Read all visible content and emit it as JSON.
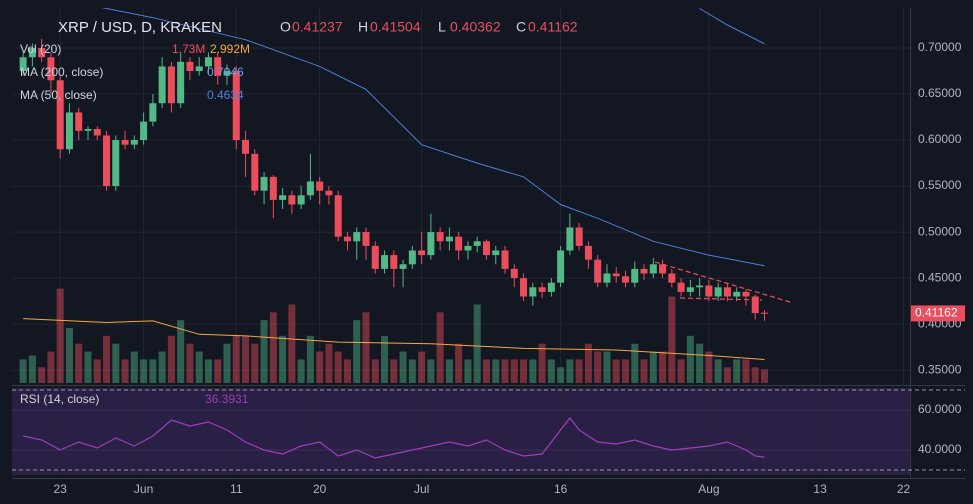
{
  "chart_data": {
    "type": "candlestick",
    "title": "XRP / USD, D, KRAKEN",
    "ohlc_labels": [
      "O",
      "H",
      "L",
      "C"
    ],
    "up_color": "#53b987",
    "down_color": "#eb4d5c",
    "grid": true,
    "xlim": [
      -5.2,
      91.7
    ],
    "xticks": [
      {
        "value": 0,
        "label": "23"
      },
      {
        "value": 9,
        "label": "Jun"
      },
      {
        "value": 19,
        "label": "11"
      },
      {
        "value": 28,
        "label": "20"
      },
      {
        "value": 39,
        "label": "Jul"
      },
      {
        "value": 54,
        "label": "16"
      },
      {
        "value": 70,
        "label": "Aug"
      },
      {
        "value": 82,
        "label": "13"
      },
      {
        "value": 91,
        "label": "22"
      }
    ],
    "ylim": [
      0.336,
      0.7435
    ],
    "yticks": [
      {
        "value": 0.35,
        "label": "0.35000"
      },
      {
        "value": 0.4,
        "label": "0.40000"
      },
      {
        "value": 0.45,
        "label": "0.45000"
      },
      {
        "value": 0.5,
        "label": "0.50000"
      },
      {
        "value": 0.55,
        "label": "0.55000"
      },
      {
        "value": 0.6,
        "label": "0.60000"
      },
      {
        "value": 0.65,
        "label": "0.65000"
      },
      {
        "value": 0.7,
        "label": "0.70000"
      }
    ],
    "x": [
      -4,
      -3,
      -2,
      -1,
      0,
      1,
      2,
      3,
      4,
      5,
      6,
      7,
      8,
      9,
      10,
      11,
      12,
      13,
      14,
      15,
      16,
      17,
      18,
      19,
      20,
      21,
      22,
      23,
      24,
      25,
      26,
      27,
      28,
      29,
      30,
      31,
      32,
      33,
      34,
      35,
      36,
      37,
      38,
      39,
      40,
      41,
      42,
      43,
      44,
      45,
      46,
      47,
      48,
      49,
      50,
      51,
      52,
      53,
      54,
      55,
      56,
      57,
      58,
      59,
      60,
      61,
      62,
      63,
      64,
      65,
      66,
      67,
      68,
      69,
      70,
      71,
      72,
      73,
      74,
      75,
      76
    ],
    "open": [
      0.675,
      0.69,
      0.7,
      0.69,
      0.665,
      0.59,
      0.63,
      0.61,
      0.612,
      0.605,
      0.55,
      0.6,
      0.595,
      0.6,
      0.62,
      0.64,
      0.68,
      0.64,
      0.685,
      0.675,
      0.68,
      0.69,
      0.67,
      0.675,
      0.6,
      0.585,
      0.545,
      0.56,
      0.535,
      0.54,
      0.53,
      0.54,
      0.555,
      0.545,
      0.54,
      0.495,
      0.49,
      0.5,
      0.485,
      0.46,
      0.475,
      0.46,
      0.465,
      0.48,
      0.475,
      0.5,
      0.49,
      0.495,
      0.48,
      0.485,
      0.49,
      0.475,
      0.48,
      0.46,
      0.45,
      0.43,
      0.44,
      0.435,
      0.445,
      0.48,
      0.505,
      0.485,
      0.47,
      0.445,
      0.455,
      0.452,
      0.445,
      0.46,
      0.455,
      0.465,
      0.455,
      0.445,
      0.435,
      0.44,
      0.442,
      0.43,
      0.44,
      0.43,
      0.435,
      0.43,
      0.41237
    ],
    "high": [
      0.695,
      0.705,
      0.71,
      0.695,
      0.67,
      0.64,
      0.635,
      0.615,
      0.615,
      0.61,
      0.605,
      0.61,
      0.605,
      0.63,
      0.65,
      0.69,
      0.685,
      0.695,
      0.69,
      0.69,
      0.695,
      0.695,
      0.682,
      0.68,
      0.61,
      0.59,
      0.565,
      0.562,
      0.548,
      0.545,
      0.55,
      0.585,
      0.56,
      0.55,
      0.545,
      0.5,
      0.505,
      0.505,
      0.49,
      0.48,
      0.48,
      0.47,
      0.485,
      0.5,
      0.52,
      0.505,
      0.505,
      0.5,
      0.49,
      0.495,
      0.492,
      0.485,
      0.485,
      0.465,
      0.455,
      0.445,
      0.445,
      0.45,
      0.485,
      0.52,
      0.51,
      0.49,
      0.475,
      0.465,
      0.462,
      0.458,
      0.468,
      0.465,
      0.472,
      0.47,
      0.46,
      0.45,
      0.448,
      0.45,
      0.448,
      0.445,
      0.445,
      0.44,
      0.438,
      0.432,
      0.41504
    ],
    "low": [
      0.67,
      0.68,
      0.685,
      0.65,
      0.58,
      0.585,
      0.6,
      0.6,
      0.6,
      0.545,
      0.545,
      0.59,
      0.59,
      0.595,
      0.615,
      0.635,
      0.63,
      0.635,
      0.665,
      0.67,
      0.672,
      0.66,
      0.66,
      0.59,
      0.56,
      0.54,
      0.53,
      0.515,
      0.525,
      0.52,
      0.525,
      0.535,
      0.53,
      0.53,
      0.49,
      0.48,
      0.47,
      0.47,
      0.455,
      0.455,
      0.44,
      0.44,
      0.46,
      0.465,
      0.47,
      0.48,
      0.48,
      0.47,
      0.47,
      0.478,
      0.47,
      0.465,
      0.455,
      0.44,
      0.425,
      0.42,
      0.428,
      0.43,
      0.44,
      0.475,
      0.48,
      0.46,
      0.44,
      0.44,
      0.445,
      0.44,
      0.44,
      0.448,
      0.45,
      0.45,
      0.44,
      0.43,
      0.43,
      0.43,
      0.425,
      0.425,
      0.425,
      0.425,
      0.42,
      0.405,
      0.40362
    ],
    "close": [
      0.69,
      0.7,
      0.69,
      0.665,
      0.59,
      0.63,
      0.61,
      0.612,
      0.605,
      0.55,
      0.6,
      0.595,
      0.6,
      0.62,
      0.64,
      0.68,
      0.64,
      0.685,
      0.675,
      0.68,
      0.69,
      0.67,
      0.675,
      0.6,
      0.585,
      0.545,
      0.56,
      0.535,
      0.54,
      0.53,
      0.54,
      0.555,
      0.545,
      0.54,
      0.495,
      0.49,
      0.5,
      0.485,
      0.46,
      0.475,
      0.46,
      0.465,
      0.48,
      0.475,
      0.5,
      0.49,
      0.495,
      0.48,
      0.485,
      0.49,
      0.475,
      0.48,
      0.46,
      0.45,
      0.43,
      0.44,
      0.435,
      0.445,
      0.48,
      0.505,
      0.485,
      0.47,
      0.445,
      0.455,
      0.452,
      0.445,
      0.46,
      0.455,
      0.465,
      0.455,
      0.445,
      0.435,
      0.44,
      0.442,
      0.43,
      0.44,
      0.43,
      0.435,
      0.43,
      0.412,
      0.41162
    ],
    "volume": {
      "name": "Vol (20)",
      "values": [
        3,
        3.5,
        2,
        4,
        12,
        7,
        5,
        4,
        3,
        6,
        5,
        3,
        4,
        3,
        3,
        4,
        6,
        8,
        5,
        4,
        3,
        3,
        5,
        6,
        6,
        5,
        8,
        9,
        6,
        10,
        3,
        6,
        4,
        5,
        4,
        3,
        8,
        9,
        3,
        6,
        3,
        4,
        3,
        4,
        3,
        9,
        3,
        5,
        3,
        10,
        3,
        3,
        3,
        3,
        3,
        3,
        5,
        3,
        2,
        3,
        3,
        5,
        4,
        4,
        3,
        3,
        5,
        3,
        4,
        4,
        11,
        3,
        6,
        5,
        4,
        3,
        2,
        3,
        3,
        2,
        1.73
      ],
      "label": "1.73M",
      "ylim": [
        0,
        14
      ],
      "ma": {
        "x": [
          -4,
          5,
          10,
          15,
          20,
          30,
          40,
          50,
          60,
          70,
          76
        ],
        "values": [
          8.2,
          7.7,
          7.9,
          6.2,
          6.0,
          5.2,
          5.0,
          4.4,
          4.2,
          3.5,
          2.992
        ],
        "label": "2.992M",
        "color": "#f5a742"
      }
    },
    "moving_averages": [
      {
        "name": "MA (200, close)",
        "color": "#4f7fd4",
        "value_color": "#6f9be8",
        "x": [
          69,
          72,
          76
        ],
        "values": [
          0.743,
          0.725,
          0.7046
        ]
      },
      {
        "name": "MA (50, close)",
        "color": "#4f7fd4",
        "value_color": "#4f7fd4",
        "x": [
          4,
          10,
          20,
          28,
          33,
          39,
          45,
          50,
          54,
          58,
          64,
          70,
          76
        ],
        "values": [
          0.745,
          0.733,
          0.709,
          0.68,
          0.655,
          0.595,
          0.575,
          0.56,
          0.53,
          0.515,
          0.49,
          0.475,
          0.4634
        ]
      }
    ],
    "rsi": {
      "name": "RSI (14, close)",
      "color": "#9c3fb8",
      "ylim": [
        27.5,
        71
      ],
      "yticks": [
        {
          "value": 60,
          "label": "60.0000"
        },
        {
          "value": 40,
          "label": "40.0000"
        }
      ],
      "bands": [
        70,
        30
      ],
      "x": [
        -4,
        -2,
        0,
        2,
        4,
        6,
        8,
        10,
        12,
        14,
        16,
        18,
        20,
        22,
        24,
        26,
        28,
        30,
        32,
        34,
        36,
        38,
        40,
        42,
        44,
        46,
        48,
        50,
        52,
        54,
        55,
        56,
        58,
        60,
        62,
        64,
        66,
        68,
        70,
        72,
        74,
        75,
        76
      ],
      "values": [
        47,
        45,
        40,
        44,
        41,
        46,
        42,
        47,
        55,
        52,
        54,
        50,
        44,
        40,
        38,
        42,
        44,
        37,
        40,
        36,
        38,
        40,
        42,
        44,
        42,
        45,
        40,
        37,
        38,
        50,
        56,
        50,
        44,
        43,
        45,
        42,
        40,
        41,
        42,
        44,
        40,
        37,
        36.3931
      ]
    }
  }
}
